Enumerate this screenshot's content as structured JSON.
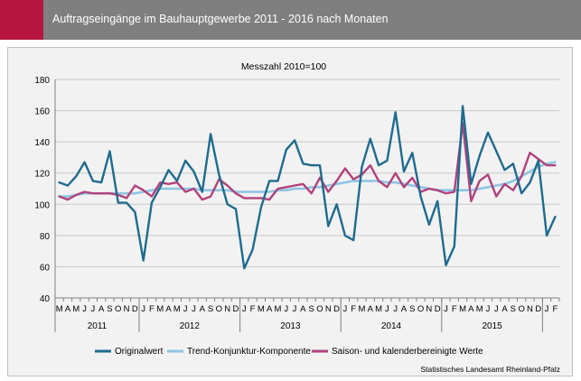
{
  "header": {
    "title": "Auftragseingänge im Bauhauptgewerbe 2011 - 2016 nach Monaten",
    "colors": {
      "bar": "#7f7f7f",
      "accent": "#b5153f"
    }
  },
  "source": "Statistisches Landesamt Rheinland-Pfalz",
  "chart_data": {
    "type": "line",
    "subtitle": "Messzahl 2010=100",
    "ylim": [
      40,
      180
    ],
    "yticks": [
      40,
      60,
      80,
      100,
      120,
      140,
      160,
      180
    ],
    "grid": "horizontal",
    "legend_position": "bottom",
    "categories": [
      "M",
      "A",
      "M",
      "J",
      "J",
      "A",
      "S",
      "O",
      "N",
      "D",
      "J",
      "F",
      "M",
      "A",
      "M",
      "J",
      "J",
      "A",
      "S",
      "O",
      "N",
      "D",
      "J",
      "F",
      "M",
      "A",
      "M",
      "J",
      "J",
      "A",
      "S",
      "O",
      "N",
      "D",
      "J",
      "F",
      "M",
      "A",
      "M",
      "J",
      "J",
      "A",
      "S",
      "O",
      "N",
      "D",
      "J",
      "F",
      "M",
      "A",
      "M",
      "J",
      "J",
      "A",
      "S",
      "O",
      "N",
      "D",
      "J",
      "F"
    ],
    "years": [
      {
        "label": "2011",
        "start": 0,
        "end": 10
      },
      {
        "label": "2012",
        "start": 10,
        "end": 22
      },
      {
        "label": "2013",
        "start": 22,
        "end": 34
      },
      {
        "label": "2014",
        "start": 34,
        "end": 46
      },
      {
        "label": "2015",
        "start": 46,
        "end": 58
      }
    ],
    "series": [
      {
        "name": "Originalwert",
        "color": "#1f6b8e",
        "values": [
          114,
          112,
          118,
          127,
          115,
          114,
          134,
          101,
          101,
          95,
          64,
          101,
          111,
          122,
          115,
          128,
          121,
          108,
          145,
          119,
          100,
          97,
          59,
          71,
          98,
          115,
          115,
          135,
          141,
          126,
          125,
          125,
          86,
          100,
          80,
          77,
          124,
          142,
          125,
          128,
          159,
          121,
          133,
          105,
          87,
          102,
          61,
          73,
          163,
          113,
          131,
          146,
          134,
          122,
          126,
          107,
          114,
          128,
          80,
          92
        ]
      },
      {
        "name": "Trend-Konjunktur-Komponente",
        "color": "#8fc4e2",
        "values": [
          105,
          105,
          106,
          107,
          107,
          107,
          107,
          107,
          107,
          107,
          108,
          109,
          110,
          110,
          110,
          110,
          110,
          109,
          109,
          109,
          109,
          108,
          108,
          108,
          108,
          108,
          109,
          109,
          110,
          110,
          111,
          111,
          112,
          113,
          114,
          115,
          115,
          115,
          115,
          114,
          114,
          113,
          112,
          111,
          110,
          109,
          109,
          109,
          109,
          109,
          110,
          111,
          112,
          113,
          115,
          118,
          121,
          124,
          126,
          127
        ]
      },
      {
        "name": "Saison- und kalenderbereinigte Werte",
        "color": "#b0427c",
        "values": [
          105,
          103,
          106,
          108,
          107,
          107,
          107,
          106,
          104,
          112,
          109,
          105,
          114,
          113,
          114,
          108,
          110,
          103,
          105,
          116,
          112,
          107,
          104,
          104,
          104,
          103,
          110,
          111,
          112,
          113,
          107,
          117,
          108,
          115,
          123,
          116,
          119,
          125,
          115,
          111,
          120,
          111,
          117,
          108,
          110,
          109,
          107,
          108,
          152,
          102,
          115,
          119,
          105,
          113,
          109,
          118,
          133,
          129,
          125,
          125
        ]
      }
    ]
  }
}
